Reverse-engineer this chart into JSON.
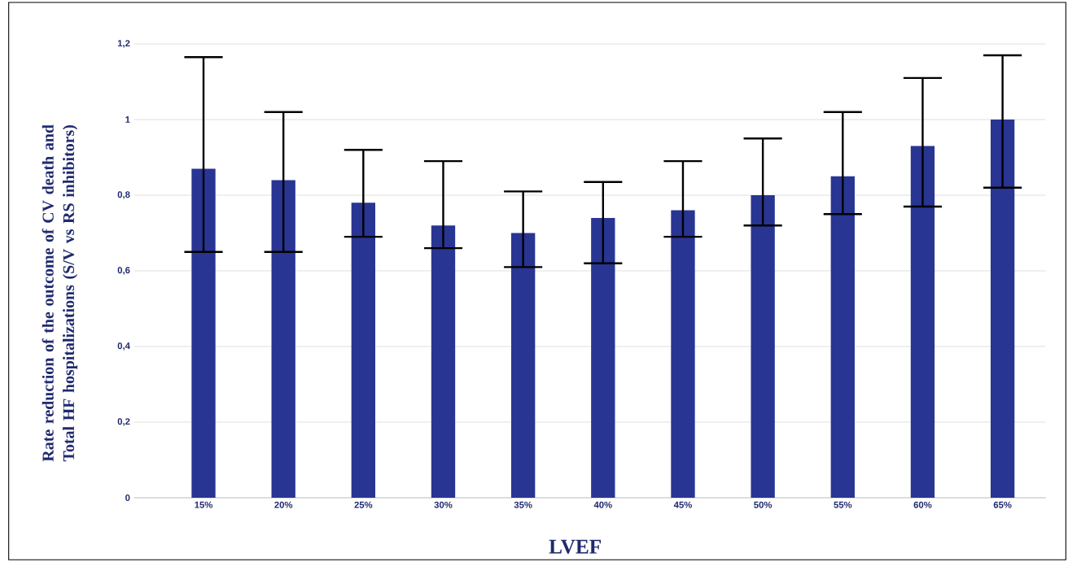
{
  "chart_data": {
    "type": "bar",
    "xlabel": "LVEF",
    "ylabel": "Rate reduction of the outcome of CV death and Total HF hospitalizations (S/V vs RS inhibitors)",
    "categories": [
      "15%",
      "20%",
      "25%",
      "30%",
      "35%",
      "40%",
      "45%",
      "50%",
      "55%",
      "60%",
      "65%"
    ],
    "values": [
      0.87,
      0.84,
      0.78,
      0.72,
      0.7,
      0.74,
      0.76,
      0.8,
      0.85,
      0.93,
      1.0
    ],
    "errors": [
      [
        0.65,
        1.165
      ],
      [
        0.65,
        1.02
      ],
      [
        0.69,
        0.92
      ],
      [
        0.66,
        0.89
      ],
      [
        0.61,
        0.81
      ],
      [
        0.62,
        0.835
      ],
      [
        0.69,
        0.89
      ],
      [
        0.72,
        0.95
      ],
      [
        0.75,
        1.02
      ],
      [
        0.77,
        1.11
      ],
      [
        0.82,
        1.17
      ]
    ],
    "color": "#283593",
    "ylim": [
      0,
      1.2
    ],
    "yticks": [
      0,
      {
        "value": 0.2,
        "label": "0,2"
      },
      {
        "value": 0.4,
        "label": "0,4"
      },
      {
        "value": 0.6,
        "label": "0,6"
      },
      {
        "value": 0.8,
        "label": "0,8"
      },
      1,
      {
        "value": 1.2,
        "label": "1,2"
      }
    ],
    "grid": "y"
  }
}
